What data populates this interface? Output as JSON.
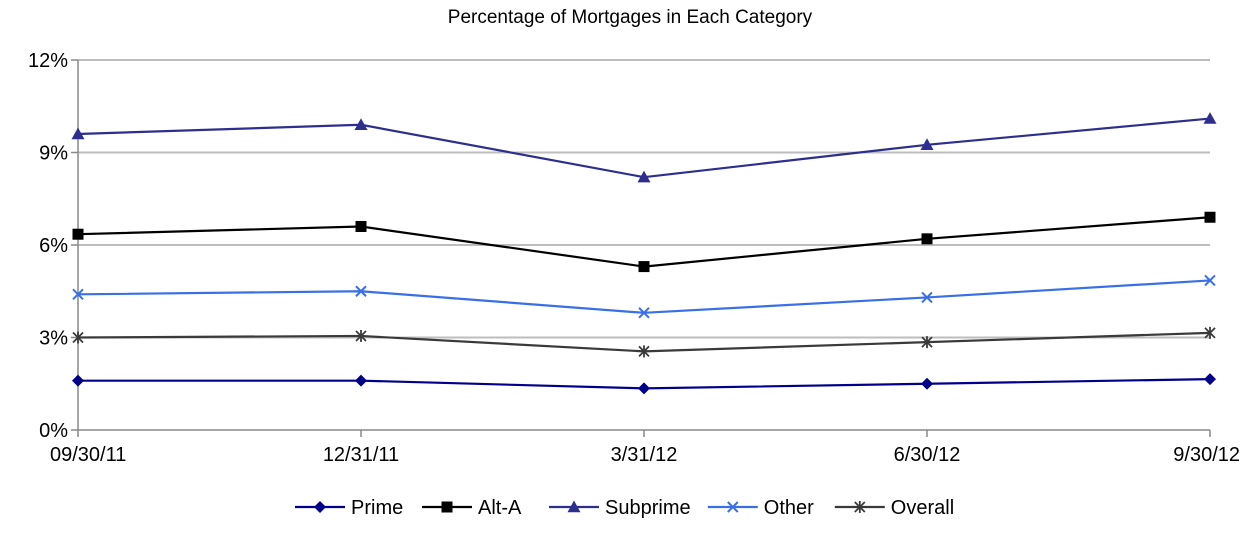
{
  "chart_data": {
    "type": "line",
    "title": "Percentage of Mortgages in Each Category",
    "xlabel": "",
    "ylabel": "",
    "categories": [
      "09/30/11",
      "12/31/11",
      "3/31/12",
      "6/30/12",
      "9/30/12"
    ],
    "y_ticks": [
      "0%",
      "3%",
      "6%",
      "9%",
      "12%"
    ],
    "y_tick_values": [
      0,
      3,
      6,
      9,
      12
    ],
    "ylim": [
      0,
      12
    ],
    "grid": "horizontal",
    "legend_position": "bottom",
    "series": [
      {
        "name": "Prime",
        "marker": "diamond",
        "color": "#00008B",
        "values": [
          1.6,
          1.6,
          1.35,
          1.5,
          1.65
        ]
      },
      {
        "name": "Alt-A",
        "marker": "square",
        "color": "#000000",
        "values": [
          6.35,
          6.6,
          5.3,
          6.2,
          6.9
        ]
      },
      {
        "name": "Subprime",
        "marker": "triangle",
        "color": "#2E2E8E",
        "values": [
          9.6,
          9.9,
          8.2,
          9.25,
          10.1
        ]
      },
      {
        "name": "Other",
        "marker": "x",
        "color": "#3A6FE8",
        "values": [
          4.4,
          4.5,
          3.8,
          4.3,
          4.85
        ]
      },
      {
        "name": "Overall",
        "marker": "asterisk",
        "color": "#3A3A3A",
        "values": [
          3.0,
          3.05,
          2.55,
          2.85,
          3.15
        ]
      }
    ]
  }
}
